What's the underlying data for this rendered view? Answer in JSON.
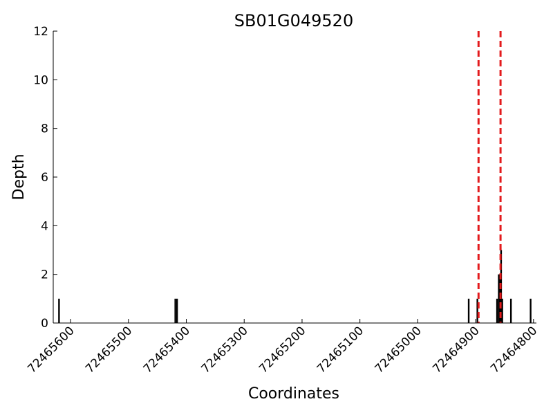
{
  "chart_data": {
    "type": "bar",
    "title": "SB01G049520",
    "xlabel": "Coordinates",
    "ylabel": "Depth",
    "x_reversed": true,
    "xlim": [
      72465630,
      72464795
    ],
    "ylim": [
      0,
      12
    ],
    "yticks": [
      0,
      2,
      4,
      6,
      8,
      10,
      12
    ],
    "xticks": [
      72465600,
      72465500,
      72465400,
      72465300,
      72465200,
      72465100,
      72465000,
      72464900,
      72464800
    ],
    "grid": false,
    "bar_color": "#000000",
    "bars": [
      {
        "x": 72465620,
        "depth": 1
      },
      {
        "x": 72465419,
        "depth": 1
      },
      {
        "x": 72465416,
        "depth": 1
      },
      {
        "x": 72464912,
        "depth": 1
      },
      {
        "x": 72464897,
        "depth": 1
      },
      {
        "x": 72464863,
        "depth": 1
      },
      {
        "x": 72464860,
        "depth": 2
      },
      {
        "x": 72464858,
        "depth": 2
      },
      {
        "x": 72464856,
        "depth": 3
      },
      {
        "x": 72464854,
        "depth": 1
      },
      {
        "x": 72464839,
        "depth": 1
      },
      {
        "x": 72464805,
        "depth": 1
      }
    ],
    "markers": {
      "color": "#e31a1c",
      "style": "dashed",
      "x": [
        72464895,
        72464857
      ]
    }
  }
}
